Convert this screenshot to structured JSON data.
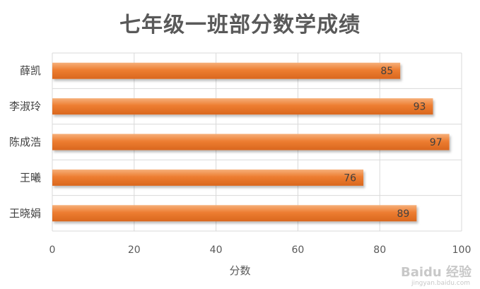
{
  "chart_data": {
    "type": "bar",
    "orientation": "horizontal",
    "title": "七年级一班部分数学成绩",
    "xlabel": "分数",
    "ylabel": "",
    "categories": [
      "薛凯",
      "李淑玲",
      "陈成浩",
      "王曦",
      "王晓娟"
    ],
    "values": [
      85,
      93,
      97,
      76,
      89
    ],
    "xlim": [
      0,
      100
    ],
    "xticks": [
      0,
      20,
      40,
      60,
      80,
      100
    ],
    "grid": true,
    "data_labels": true,
    "bar_color": "#ED7D31",
    "bar_color_light": "#F4A56A"
  },
  "watermark": {
    "main": "Baidu 经验",
    "sub": "jingyan.baidu.com"
  }
}
